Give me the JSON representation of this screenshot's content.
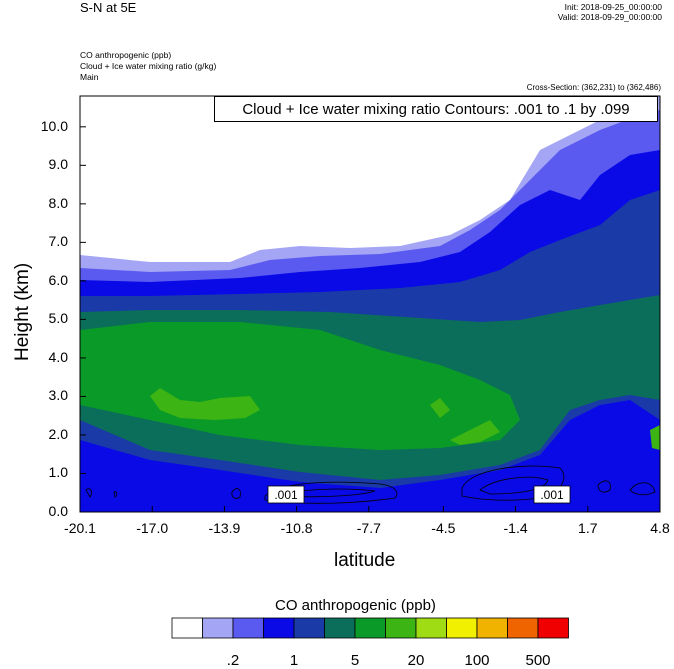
{
  "header": {
    "title": "S-N at 5E",
    "init": "Init: 2018-09-25_00:00:00",
    "valid": "Valid: 2018-09-29_00:00:00",
    "fields": [
      "CO anthropogenic   (ppb)",
      "Cloud + Ice water mixing ratio   (g/kg)",
      "Main"
    ],
    "cross_section": "Cross-Section: (362,231) to (362,486)",
    "contour_info": "Cloud + Ice water mixing ratio Contours: .001 to .1 by .099"
  },
  "chart_data": {
    "type": "heatmap",
    "xlabel": "latitude",
    "ylabel": "Height (km)",
    "xlim": [
      -20.1,
      4.8
    ],
    "ylim": [
      0,
      10.8
    ],
    "x_ticks": [
      "-20.1",
      "-17.0",
      "-13.9",
      "-10.8",
      "-7.7",
      "-4.5",
      "-1.4",
      "1.7",
      "4.8"
    ],
    "y_ticks": [
      "0.0",
      "1.0",
      "2.0",
      "3.0",
      "4.0",
      "5.0",
      "6.0",
      "7.0",
      "8.0",
      "9.0",
      "10.0"
    ],
    "contour_labels": [
      ".001",
      ".001"
    ],
    "colorbar": {
      "title": "CO anthropogenic  (ppb)",
      "colors": [
        "#ffffff",
        "#a5a5f5",
        "#5a5af0",
        "#0a0ae6",
        "#1a3aa8",
        "#0a6e5a",
        "#0a9a28",
        "#3cb414",
        "#a0dc14",
        "#f0f000",
        "#f0b400",
        "#f06400",
        "#f00000"
      ],
      "labels": [
        ".2",
        "1",
        "5",
        "20",
        "100",
        "500"
      ]
    }
  }
}
